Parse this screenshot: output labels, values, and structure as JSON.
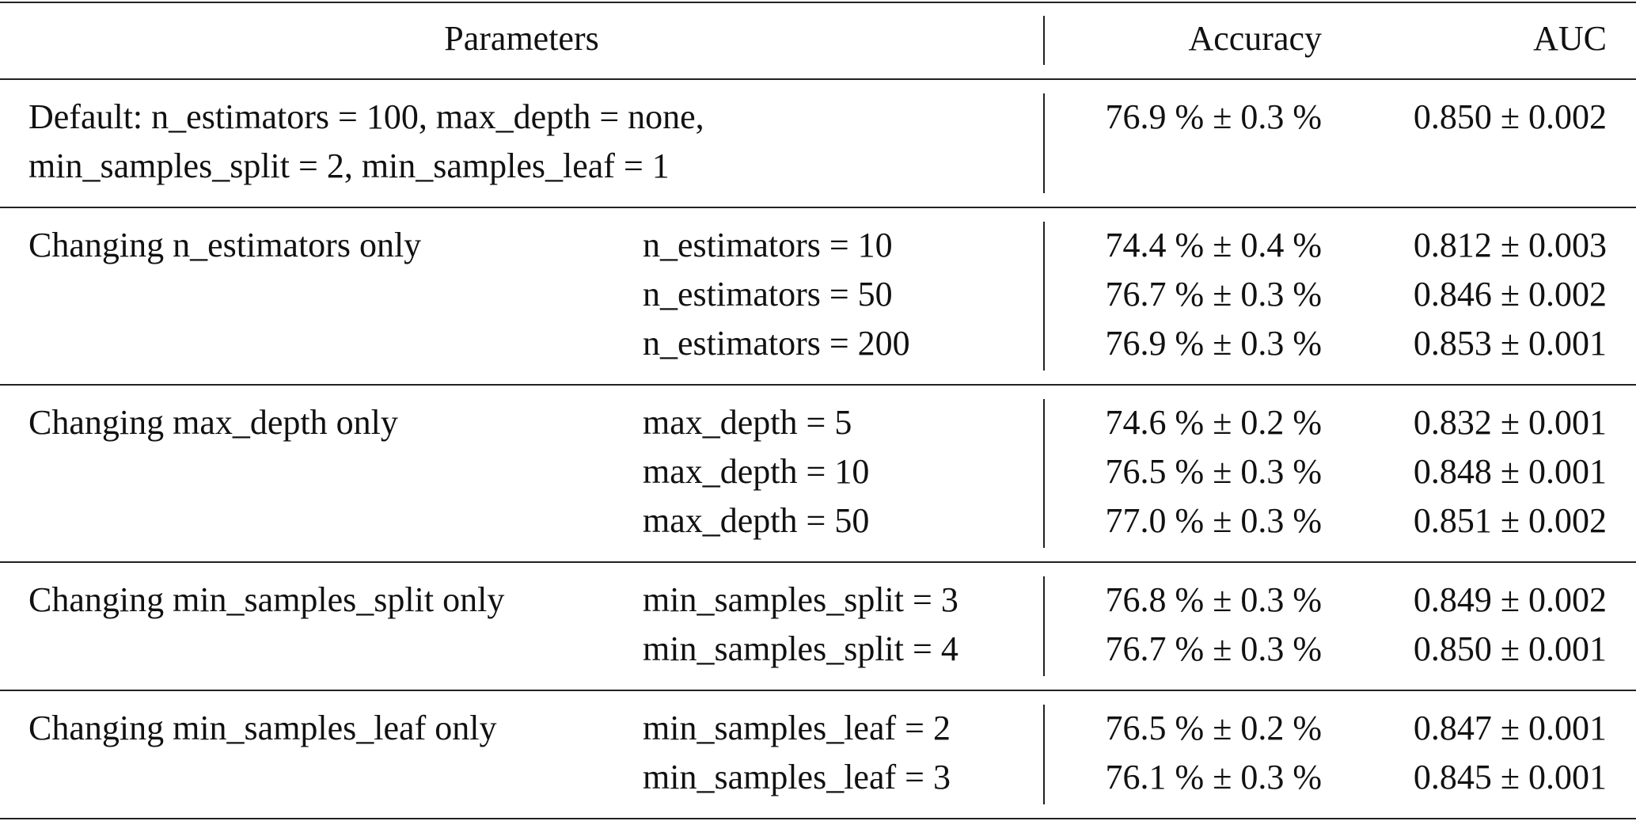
{
  "table": {
    "header": [
      "Parameters",
      "Accuracy",
      "AUC"
    ],
    "groups": [
      {
        "label_lines": [
          "Default: n_estimators = 100, max_depth = none,",
          "min_samples_split = 2, min_samples_leaf = 1"
        ],
        "rows": [
          {
            "accuracy": "76.9 % ± 0.3 %",
            "auc": "0.850 ± 0.002"
          }
        ]
      },
      {
        "label_lines": [
          "Changing n_estimators only"
        ],
        "rows": [
          {
            "param": "n_estimators = 10",
            "accuracy": "74.4 % ± 0.4 %",
            "auc": "0.812 ± 0.003"
          },
          {
            "param": "n_estimators = 50",
            "accuracy": "76.7 % ± 0.3 %",
            "auc": "0.846 ± 0.002"
          },
          {
            "param": "n_estimators = 200",
            "accuracy": "76.9 % ± 0.3 %",
            "auc": "0.853 ± 0.001"
          }
        ]
      },
      {
        "label_lines": [
          "Changing max_depth only"
        ],
        "rows": [
          {
            "param": "max_depth = 5",
            "accuracy": "74.6 % ± 0.2 %",
            "auc": "0.832 ± 0.001"
          },
          {
            "param": "max_depth = 10",
            "accuracy": "76.5 % ± 0.3 %",
            "auc": "0.848 ± 0.001"
          },
          {
            "param": "max_depth = 50",
            "accuracy": "77.0 % ± 0.3 %",
            "auc": "0.851 ± 0.002"
          }
        ]
      },
      {
        "label_lines": [
          "Changing min_samples_split only"
        ],
        "rows": [
          {
            "param": "min_samples_split = 3",
            "accuracy": "76.8 % ± 0.3 %",
            "auc": "0.849 ± 0.002"
          },
          {
            "param": "min_samples_split = 4",
            "accuracy": "76.7 % ± 0.3 %",
            "auc": "0.850 ± 0.001"
          }
        ]
      },
      {
        "label_lines": [
          "Changing min_samples_leaf only"
        ],
        "rows": [
          {
            "param": "min_samples_leaf = 2",
            "accuracy": "76.5 % ± 0.2 %",
            "auc": "0.847 ± 0.001"
          },
          {
            "param": "min_samples_leaf = 3",
            "accuracy": "76.1 % ± 0.3 %",
            "auc": "0.845 ± 0.001"
          }
        ]
      }
    ]
  }
}
